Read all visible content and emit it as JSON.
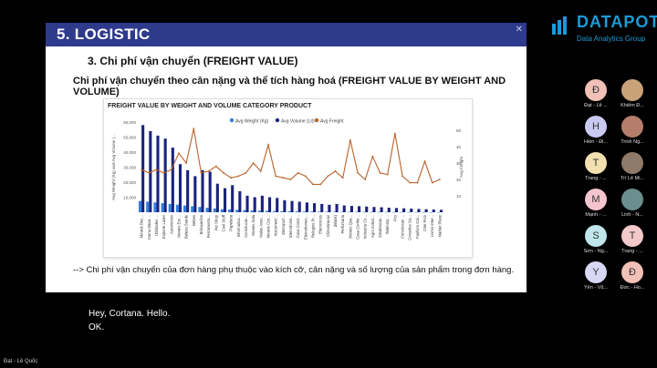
{
  "slide": {
    "title": "5. LOGISTIC",
    "close": "✕",
    "subhead": "3. Chi phí vận chuyển (FREIGHT VALUE)",
    "subtitle": "Chi phí vận chuyển theo cân nặng và thể tích hàng hoá (FREIGHT VALUE BY WEIGHT AND VOLUME)",
    "note": "--> Chi phí vận chuyển của đơn hàng phụ thuộc vào kích cỡ, cân nặng và số lượng của sản phẩm trong đơn hàng."
  },
  "chart_data": {
    "type": "bar",
    "title": "FREIGHT VALUE BY WEIGHT AND VOLUME CATEGORY PRODUCT",
    "legend": [
      "Avg Weight (Kg)",
      "Avg Volume (Lit)",
      "Avg Freight"
    ],
    "ylabel": "Avg Weight (Kg) and Avg Volume (...",
    "y2label": "Avg Freight",
    "y_ticks": [
      "60,000",
      "50,000",
      "40,000",
      "30,000",
      "20,000",
      "10,000"
    ],
    "y2_ticks": [
      "50",
      "40",
      "30",
      "20",
      "10"
    ],
    "ylim": [
      0,
      60000
    ],
    "y2lim": [
      0,
      55
    ],
    "colors": {
      "weight": "#2f7fe0",
      "volume": "#1a237e",
      "freight": "#b8622a"
    },
    "categories": [
      "Moveis Dec...",
      "Cama Mesa ...",
      "Utilidades ...",
      "Esporte Lazer",
      "Automotivo",
      "Moveis Esc...",
      "Beleza Saude",
      "Bebes",
      "Brinquedos",
      "Ferramenta...",
      "Pet Shop",
      "Cool Stuff",
      "Papelaria",
      "Informatica...",
      "Construcao...",
      "Moveis Sala",
      "Malas Aces...",
      "Moveis Coz...",
      "Instrument...",
      "Eletroport...",
      "Eletrodome...",
      "Casa Const...",
      "Eletrodomes...",
      "Relogios Pr...",
      "Eletronicos",
      "Climatizacao",
      "(Blank)",
      "Perfumaria",
      "Moveis Qua...",
      "Casa Confor...",
      "Industria Co...",
      "Agro Indust...",
      "Sinalizacao...",
      "Telefonia ...",
      "Pcs",
      "Construcao ...",
      "Consoles Ga...",
      "Fashion Cal...",
      "Cine Foto",
      "Livros Inter...",
      "Market Place"
    ],
    "weight": [
      7500,
      7000,
      6500,
      6000,
      5500,
      5000,
      4500,
      4000,
      3500,
      3000,
      2500,
      2000,
      1800,
      1600,
      1400,
      1200,
      1000,
      900,
      800,
      700,
      600,
      550,
      500,
      450,
      400,
      350,
      300,
      280,
      260,
      240,
      220,
      200,
      180,
      160,
      140,
      120,
      100,
      90,
      80,
      70,
      60
    ],
    "volume": [
      58000,
      54000,
      51000,
      49000,
      43000,
      32000,
      28000,
      24000,
      28000,
      27000,
      19000,
      16000,
      18000,
      14000,
      11000,
      10000,
      11000,
      10000,
      9500,
      8000,
      7500,
      7000,
      6500,
      6000,
      5500,
      5000,
      5500,
      4500,
      4200,
      4000,
      3800,
      3500,
      3300,
      3000,
      2800,
      2600,
      2400,
      2200,
      2000,
      1800,
      1600
    ],
    "freight": [
      26,
      24,
      26,
      24,
      26,
      36,
      30,
      51,
      24,
      25,
      28,
      24,
      21,
      22,
      24,
      30,
      25,
      41,
      22,
      21,
      20,
      24,
      22,
      17,
      17,
      22,
      25,
      21,
      44,
      24,
      20,
      34,
      24,
      23,
      48,
      22,
      18,
      18,
      31,
      18,
      20
    ]
  },
  "logo": {
    "name": "DATAPOT",
    "tagline": "Data Analytics Group"
  },
  "participants": [
    {
      "initial": "Đ",
      "name": "Đạt - Lê ...",
      "color": "#f1c0b6"
    },
    {
      "initial": "",
      "name": "Khiêm Đ...",
      "color": "#c9a27a"
    },
    {
      "initial": "H",
      "name": "Hiền - Đi...",
      "color": "#c9c9f1"
    },
    {
      "initial": "",
      "name": "Trinh Ng...",
      "color": "#b57d6b"
    },
    {
      "initial": "T",
      "name": "Trang - ...",
      "color": "#f3e0b0"
    },
    {
      "initial": "",
      "name": "Trí Lê Mi...",
      "color": "#8d7a6a"
    },
    {
      "initial": "M",
      "name": "Mạnh - ...",
      "color": "#f4c4cf"
    },
    {
      "initial": "",
      "name": "Linh - N...",
      "color": "#6b8e8e"
    },
    {
      "initial": "S",
      "name": "Sơn - Ng...",
      "color": "#bfe6ea"
    },
    {
      "initial": "T",
      "name": "Trang - ...",
      "color": "#f3c8c8"
    },
    {
      "initial": "Y",
      "name": "Yến - Vũ...",
      "color": "#d8d8f4"
    },
    {
      "initial": "Đ",
      "name": "Đức - Ho...",
      "color": "#f1c0b6"
    }
  ],
  "captions": [
    "Hey, Cortana. Hello.",
    "OK."
  ],
  "self_label": "Đạt - Lê Quốc"
}
